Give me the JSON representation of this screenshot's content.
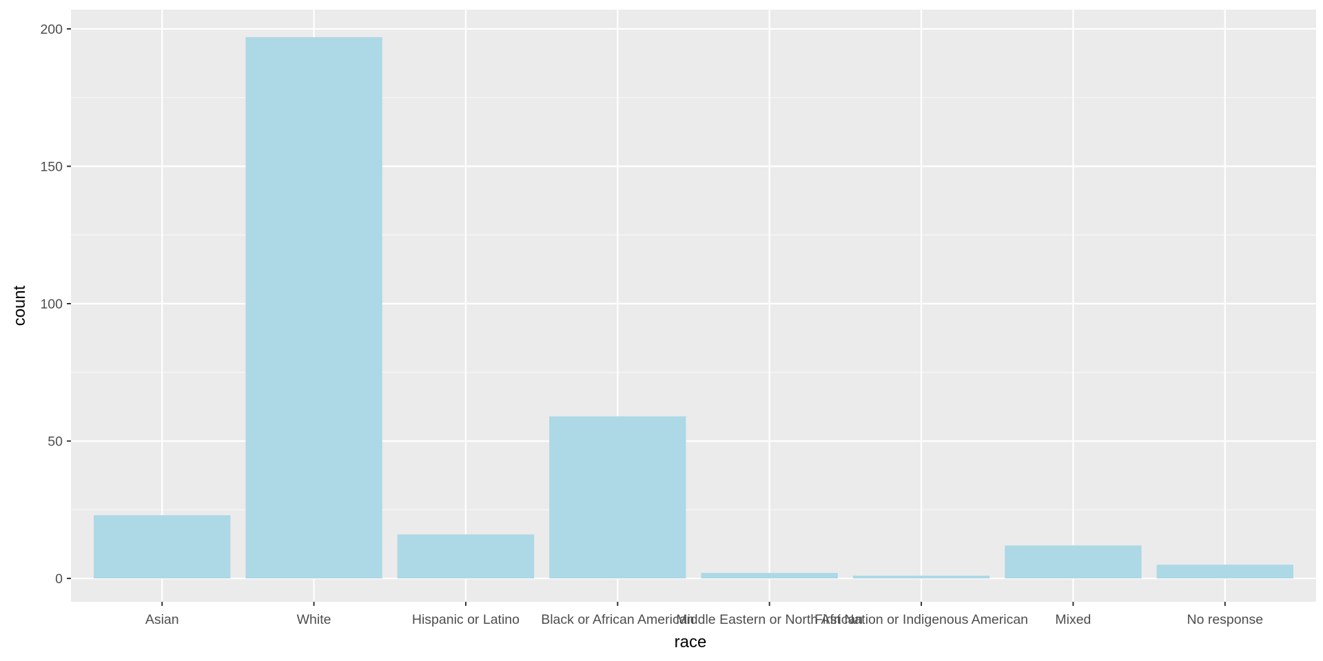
{
  "chart_data": {
    "type": "bar",
    "title": "",
    "xlabel": "race",
    "ylabel": "count",
    "categories": [
      "Asian",
      "White",
      "Hispanic or Latino",
      "Black or African American",
      "Middle Eastern or North African",
      "First Nation or Indigenous American",
      "Mixed",
      "No response"
    ],
    "values": [
      23,
      197,
      16,
      59,
      2,
      1,
      12,
      5
    ],
    "ylim": [
      -8.5,
      207
    ],
    "yticks": [
      0,
      50,
      100,
      150,
      200
    ],
    "grid": true,
    "legend": "none",
    "colors": {
      "bar": "#add8e6",
      "panel_background": "#ebebeb",
      "grid_major": "#ffffff",
      "grid_minor": "#f7f7f7"
    }
  }
}
